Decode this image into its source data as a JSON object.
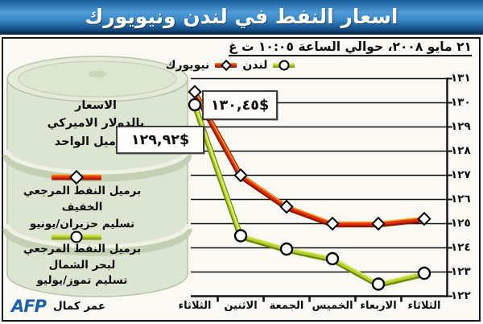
{
  "title": "اسعار النفط في لندن ونيويورك",
  "date_line": "٢١ مايو ٢٠٠٨، حوالي الساعة ١٠:٠٥ ت غ",
  "legend": {
    "newyork_label": "نيويورك",
    "london_label": "لندن"
  },
  "left_panel": {
    "unit_line1": "الاسعار",
    "unit_line2": "بالدولار الاميركي",
    "unit_line3": "للبرميل الواحد",
    "ny_line1": "برميل النفط المرجعي الخفيف",
    "ny_line2": "تسليم حزيران/يونيو",
    "lon_line1": "برميل النفط المرجعي",
    "lon_line2": "لبحر الشمال",
    "lon_line3": "تسليم تموز/يوليو",
    "credit_logo": "AFP",
    "credit_name": "عمر كمال"
  },
  "callouts": {
    "ny_price": "١٣٠,٤٥$",
    "london_price": "١٢٩,٩٢$"
  },
  "colors": {
    "titlebar_blue": "#3988c7",
    "afp_blue": "#1c5fae",
    "grid": "#121212",
    "ny_red": "#e03008",
    "london_green": "#b5d234"
  },
  "chart_data": {
    "type": "line",
    "title": "اسعار النفط في لندن ونيويورك",
    "subtitle": "٢١ مايو ٢٠٠٨، حوالي الساعة ١٠:٠٥ ت غ",
    "ylabel": "الاسعار بالدولار الاميركي للبرميل الواحد",
    "categories": [
      "الثلاثاء",
      "الاثنين",
      "الجمعة",
      "الخميس",
      "الاربعاء",
      "الثلاثاء"
    ],
    "time_direction": "right-to-left",
    "series": [
      {
        "name": "نيويورك",
        "description": "برميل النفط المرجعي الخفيف تسليم حزيران/يونيو",
        "marker": "diamond",
        "color": "#e03008",
        "shadow": "#8e1600",
        "highlight": "#ffa01e",
        "values": [
          130.45,
          127.0,
          125.7,
          125.0,
          125.0,
          125.2
        ],
        "labeled_value": "١٣٠,٤٥$"
      },
      {
        "name": "لندن",
        "description": "برميل النفط المرجعي لبحر الشمال تسليم تموز/يوليو",
        "marker": "circle",
        "color": "#b5d234",
        "shadow": "#6f8c00",
        "highlight": "#e6f07a",
        "values": [
          129.92,
          124.5,
          123.95,
          123.55,
          122.5,
          122.95
        ],
        "labeled_value": "١٢٩,٩٢$"
      }
    ],
    "ylim": [
      122,
      131
    ],
    "ytick_labels": [
      "١٢٢",
      "١٢٣",
      "١٢٤",
      "١٢٥",
      "١٢٦",
      "١٢٧",
      "١٢٨",
      "١٢٩",
      "١٣٠",
      "١٣١"
    ],
    "grid": "horizontal",
    "legend_position": "top"
  }
}
